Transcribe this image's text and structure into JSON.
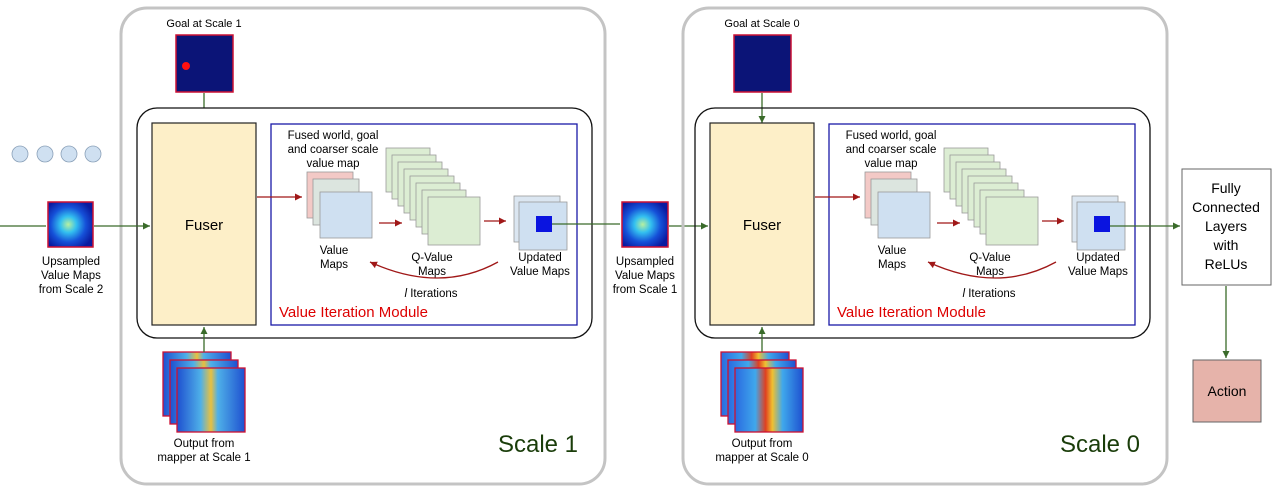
{
  "diagram": {
    "scale1": {
      "title": "Scale 1",
      "goal_label": "Goal at Scale 1",
      "fuser_label": "Fuser",
      "fused_label_line1": "Fused world, goal",
      "fused_label_line2": "and coarser scale",
      "fused_label_line3": "value map",
      "value_maps_line1": "Value",
      "value_maps_line2": "Maps",
      "q_value_line1": "Q-Value",
      "q_value_line2": "Maps",
      "updated_line1": "Updated",
      "updated_line2": "Value Maps",
      "iterations_var": "l",
      "iterations_text": "Iterations",
      "vi_module_label": "Value Iteration Module",
      "mapper_line1": "Output from",
      "mapper_line2": "mapper at Scale 1"
    },
    "scale0": {
      "title": "Scale 0",
      "goal_label": "Goal at Scale 0",
      "fuser_label": "Fuser",
      "fused_label_line1": "Fused world, goal",
      "fused_label_line2": "and coarser scale",
      "fused_label_line3": "value map",
      "value_maps_line1": "Value",
      "value_maps_line2": "Maps",
      "q_value_line1": "Q-Value",
      "q_value_line2": "Maps",
      "updated_line1": "Updated",
      "updated_line2": "Value Maps",
      "iterations_var": "l",
      "iterations_text": "Iterations",
      "vi_module_label": "Value Iteration Module",
      "mapper_line1": "Output from",
      "mapper_line2": "mapper at Scale 0"
    },
    "input_scale2": {
      "line1": "Upsampled",
      "line2": "Value Maps",
      "line3": "from Scale 2"
    },
    "between_scales": {
      "line1": "Upsampled",
      "line2": "Value Maps",
      "line3": "from Scale 1"
    },
    "fc_layers": {
      "line1": "Fully",
      "line2": "Connected",
      "line3": "Layers",
      "line4": "with",
      "line5": "ReLUs"
    },
    "action_label": "Action",
    "colors": {
      "scale_title": "#1a3d0a",
      "vi_label": "#dd0000",
      "vi_border": "#1a1aa8",
      "fuser_fill": "#fdefc8",
      "arrow_green": "#3a6b2a",
      "arrow_red": "#a01818",
      "action_fill": "#e6b3aa",
      "value_map_fill": "#cfe0f1",
      "value_map_back": "#f3c9c6",
      "q_map_fill": "#dcedd3",
      "dark_navy": "#0b1477",
      "ellipsis_fill": "#cfe0f1"
    }
  }
}
